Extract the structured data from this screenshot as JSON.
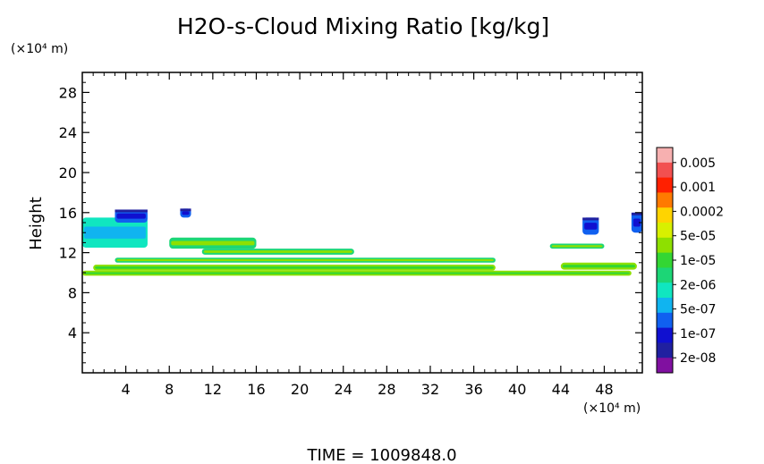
{
  "chart_data": {
    "type": "heatmap",
    "title": "H2O-s-Cloud Mixing Ratio [kg/kg]",
    "ylabel": "Height",
    "y_unit": "(×10⁴ m)",
    "x_unit": "(×10⁴ m)",
    "xlim": [
      0,
      51.5
    ],
    "ylim": [
      0,
      30
    ],
    "x_ticks": [
      4,
      8,
      12,
      16,
      20,
      24,
      28,
      32,
      36,
      40,
      44,
      48
    ],
    "y_ticks": [
      4,
      8,
      12,
      16,
      20,
      24,
      28
    ],
    "colorbar": {
      "labels": [
        "0.005",
        "0.001",
        "0.0002",
        "5e-05",
        "1e-05",
        "2e-06",
        "5e-07",
        "1e-07",
        "2e-08"
      ],
      "colors": [
        "#f7b0b0",
        "#f25050",
        "#ff2000",
        "#ff7a00",
        "#ffd400",
        "#d8f000",
        "#8ee000",
        "#33d633",
        "#1cd676",
        "#10e6c0",
        "#10b4f0",
        "#1060f0",
        "#1010d0",
        "#2020a0",
        "#8010a0"
      ]
    },
    "regions": [
      {
        "band": "thin",
        "x": [
          0,
          50.5
        ],
        "y": [
          9.7,
          10.2
        ]
      },
      {
        "band": "thin",
        "x": [
          1,
          38
        ],
        "y": [
          10.2,
          10.8
        ]
      },
      {
        "band": "low",
        "x": [
          3,
          38
        ],
        "y": [
          11,
          11.5
        ]
      },
      {
        "band": "low",
        "x": [
          11,
          25
        ],
        "y": [
          11.8,
          12.4
        ]
      },
      {
        "band": "low",
        "x": [
          8,
          16
        ],
        "y": [
          12.4,
          13.5
        ]
      },
      {
        "band": "mid",
        "x": [
          0,
          6
        ],
        "y": [
          12.5,
          15.5
        ]
      },
      {
        "band": "high",
        "x": [
          3,
          6
        ],
        "y": [
          15,
          16.3
        ]
      },
      {
        "band": "high",
        "x": [
          9,
          10
        ],
        "y": [
          15.5,
          16.4
        ]
      },
      {
        "band": "high",
        "x": [
          46,
          47.5
        ],
        "y": [
          13.8,
          15.5
        ]
      },
      {
        "band": "high",
        "x": [
          50.5,
          51.5
        ],
        "y": [
          14,
          16
        ]
      },
      {
        "band": "low",
        "x": [
          43,
          48
        ],
        "y": [
          12.4,
          12.9
        ]
      },
      {
        "band": "thin",
        "x": [
          44,
          51
        ],
        "y": [
          10.3,
          11
        ]
      }
    ],
    "time_label": "TIME = 1009848.0"
  }
}
